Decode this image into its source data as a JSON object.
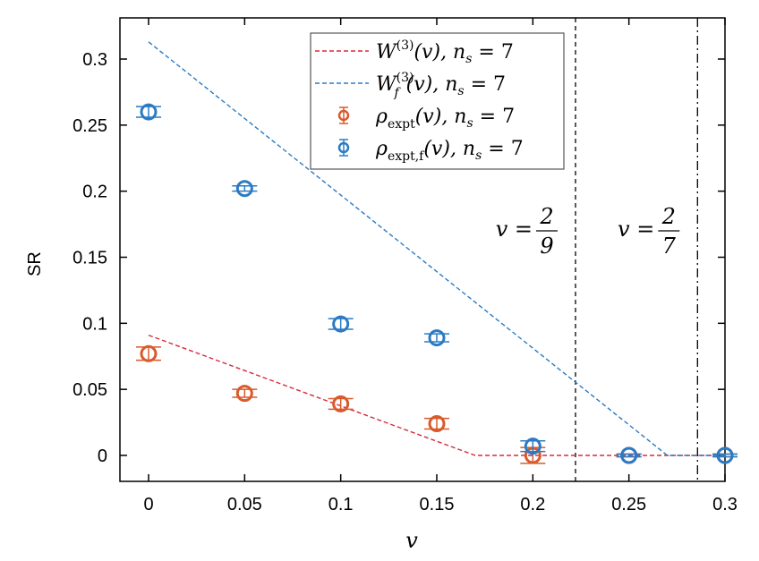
{
  "chart_data": {
    "type": "scatter",
    "xlabel": "v",
    "ylabel": "SR",
    "xlim": [
      -0.015,
      0.3
    ],
    "ylim": [
      -0.02,
      0.33
    ],
    "xticks": [
      "0",
      "0.05",
      "0.1",
      "0.15",
      "0.2",
      "0.25",
      "0.3"
    ],
    "xtick_values": [
      0,
      0.05,
      0.1,
      0.15,
      0.2,
      0.25,
      0.3
    ],
    "yticks": [
      "0",
      "0.05",
      "0.1",
      "0.15",
      "0.2",
      "0.25",
      "0.3"
    ],
    "ytick_values": [
      0,
      0.05,
      0.1,
      0.15,
      0.2,
      0.25,
      0.3
    ],
    "grid": false,
    "legend_position": "top-right",
    "series": [
      {
        "name": "W^(3)(v), n_s = 7",
        "kind": "dashed-line",
        "color": "#d62a3a",
        "x": [
          0,
          0.17,
          0.3
        ],
        "y": [
          0.091,
          0,
          0
        ]
      },
      {
        "name": "W_f^(3)(v), n_s = 7",
        "kind": "dashed-line",
        "color": "#2b7bc4",
        "x": [
          0,
          0.27,
          0.3
        ],
        "y": [
          0.313,
          0,
          0
        ]
      },
      {
        "name": "ρ_expt(v), n_s = 7",
        "kind": "errorbar",
        "color": "#d95a2b",
        "x": [
          0,
          0.05,
          0.1,
          0.15,
          0.2,
          0.25,
          0.3
        ],
        "y": [
          0.077,
          0.047,
          0.039,
          0.024,
          0,
          0,
          0
        ],
        "err": [
          0.005,
          0.003,
          0.004,
          0.004,
          0.006,
          0.001,
          0.001
        ]
      },
      {
        "name": "ρ_expt,f(v), n_s = 7",
        "kind": "errorbar",
        "color": "#2b7bc4",
        "x": [
          0,
          0.05,
          0.1,
          0.15,
          0.2,
          0.25,
          0.3
        ],
        "y": [
          0.26,
          0.202,
          0.0995,
          0.089,
          0.007,
          0,
          0
        ],
        "err": [
          0.004,
          0.002,
          0.004,
          0.003,
          0.004,
          0.001,
          0.001
        ]
      }
    ],
    "vlines": [
      {
        "x": 0.2222,
        "style": "dashed",
        "label_lhs": "v =",
        "label_num": "2",
        "label_den": "9"
      },
      {
        "x": 0.2857,
        "style": "dashdot",
        "label_lhs": "v =",
        "label_num": "2",
        "label_den": "7"
      }
    ]
  }
}
